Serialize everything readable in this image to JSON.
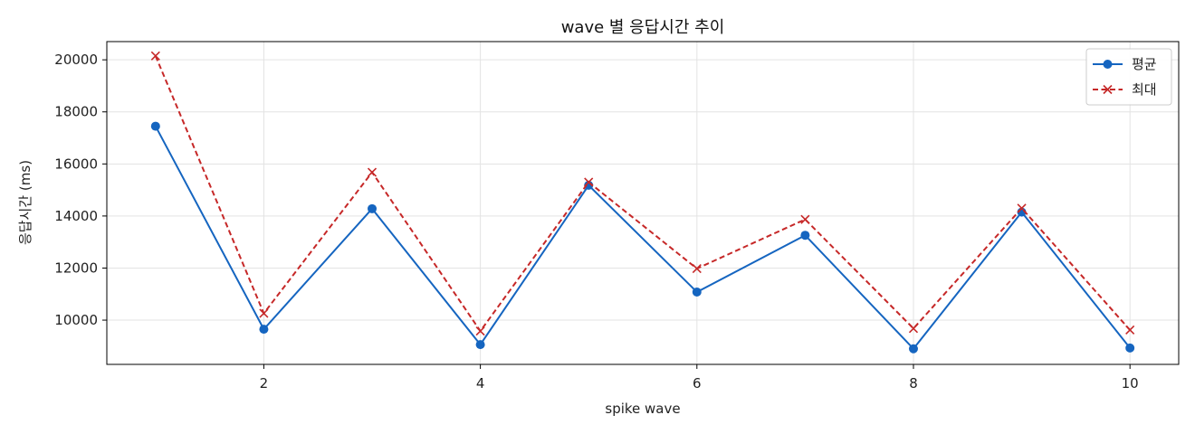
{
  "chart_data": {
    "type": "line",
    "title": "wave 별 응답시간 추이",
    "xlabel": "spike wave",
    "ylabel": "응답시간 (ms)",
    "x": [
      1,
      2,
      3,
      4,
      5,
      6,
      7,
      8,
      9,
      10
    ],
    "xlim": [
      0.55,
      10.45
    ],
    "ylim": [
      8300,
      20700
    ],
    "xticks": [
      2,
      4,
      6,
      8,
      10
    ],
    "yticks": [
      10000,
      12000,
      14000,
      16000,
      18000,
      20000
    ],
    "grid": true,
    "legend_position": "top-right",
    "series": [
      {
        "name": "평균",
        "color": "#1565c0",
        "line_style": "solid",
        "marker": "circle",
        "values": [
          17450,
          9650,
          14280,
          9060,
          15180,
          11080,
          13260,
          8900,
          14150,
          8930
        ]
      },
      {
        "name": "최대",
        "color": "#c62828",
        "line_style": "dashed",
        "marker": "x",
        "values": [
          20150,
          10260,
          15680,
          9580,
          15300,
          11980,
          13870,
          9680,
          14300,
          9620
        ]
      }
    ]
  }
}
